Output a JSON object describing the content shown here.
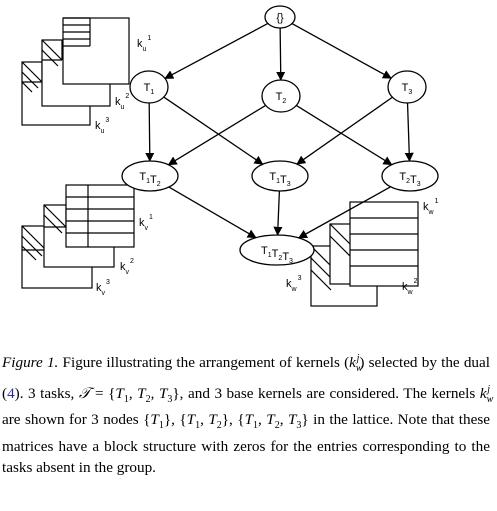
{
  "diagram": {
    "nodes": [
      {
        "id": "root",
        "label": "{}"
      },
      {
        "id": "t1",
        "parts": [
          {
            "t": "T",
            "s": "1"
          }
        ]
      },
      {
        "id": "t2",
        "parts": [
          {
            "t": "T",
            "s": "2"
          }
        ]
      },
      {
        "id": "t3",
        "parts": [
          {
            "t": "T",
            "s": "3"
          }
        ]
      },
      {
        "id": "t1t2",
        "parts": [
          {
            "t": "T",
            "s": "1"
          },
          {
            "t": "T",
            "s": "2"
          }
        ]
      },
      {
        "id": "t1t3",
        "parts": [
          {
            "t": "T",
            "s": "1"
          },
          {
            "t": "T",
            "s": "3"
          }
        ]
      },
      {
        "id": "t2t3",
        "parts": [
          {
            "t": "T",
            "s": "2"
          },
          {
            "t": "T",
            "s": "3"
          }
        ]
      },
      {
        "id": "t1t2t3",
        "parts": [
          {
            "t": "T",
            "s": "1"
          },
          {
            "t": "T",
            "s": "2"
          },
          {
            "t": "T",
            "s": "3"
          }
        ]
      }
    ],
    "edges": [
      [
        "root",
        "t1"
      ],
      [
        "root",
        "t2"
      ],
      [
        "root",
        "t3"
      ],
      [
        "t1",
        "t1t2"
      ],
      [
        "t1",
        "t1t3"
      ],
      [
        "t2",
        "t1t2"
      ],
      [
        "t2",
        "t2t3"
      ],
      [
        "t3",
        "t1t3"
      ],
      [
        "t3",
        "t2t3"
      ],
      [
        "t1t2",
        "t1t2t3"
      ],
      [
        "t1t3",
        "t1t2t3"
      ],
      [
        "t2t3",
        "t1t2t3"
      ]
    ],
    "kernel_labels": {
      "u1": {
        "base": "k",
        "sub": "u",
        "sup": "1"
      },
      "u2": {
        "base": "k",
        "sub": "u",
        "sup": "2"
      },
      "u3": {
        "base": "k",
        "sub": "u",
        "sup": "3"
      },
      "v1": {
        "base": "k",
        "sub": "v",
        "sup": "1"
      },
      "v2": {
        "base": "k",
        "sub": "v",
        "sup": "2"
      },
      "v3": {
        "base": "k",
        "sub": "v",
        "sup": "3"
      },
      "w1": {
        "base": "k",
        "sub": "w",
        "sup": "1"
      },
      "w2": {
        "base": "k",
        "sub": "w",
        "sup": "2"
      },
      "w3": {
        "base": "k",
        "sub": "w",
        "sup": "3"
      }
    }
  },
  "caption": {
    "label": "Figure 1.",
    "p1": " Figure illustrating the arrangement of kernels (",
    "p2": ") selected by the dual (",
    "ref": "4",
    "p3": ").  3 tasks, ",
    "p4": " = {",
    "p5": "}, and 3 base kernels are considered.  The kernels ",
    "p6": " are shown for 3 nodes {",
    "p7": "}, {",
    "p8": "}, {",
    "p9": "} in the lattice.  Note that these matrices have a block structure with zeros for the entries corresponding to the tasks absent in the group.",
    "k_base": "k",
    "k_sub": "w",
    "k_sup": "j",
    "set_symbol": "𝒯",
    "t1": "T",
    "t1_sub": "1",
    "t2": "T",
    "t2_sub": "2",
    "t3": "T",
    "t3_sub": "3"
  }
}
